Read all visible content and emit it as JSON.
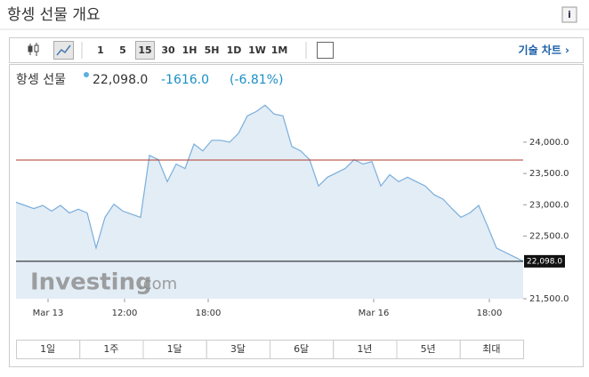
{
  "widget": {
    "title": "항셍 선물 개요",
    "info": "i",
    "intervals": [
      "1",
      "5",
      "15",
      "30",
      "1H",
      "5H",
      "1D",
      "1W",
      "1M"
    ],
    "selected_interval": "15",
    "technical": "기술 차트 ›",
    "quote": {
      "name": "항셍 선물",
      "price": "22,098.0",
      "change": "-1616.0",
      "percent": "(-6.81%)"
    },
    "ranges": [
      "1일",
      "1주",
      "1달",
      "3달",
      "6달",
      "1년",
      "5년",
      "최대"
    ],
    "watermark": {
      "brand": "Investing",
      "suffix": ".com"
    }
  },
  "chart_data": {
    "type": "area",
    "color": "#7aaedb",
    "fill": "#e3edf6",
    "x": [
      0,
      1,
      2,
      3,
      4,
      5,
      6,
      7,
      8,
      9,
      10,
      11,
      12,
      13,
      14,
      15,
      16,
      17,
      18,
      19,
      20,
      21,
      22,
      23,
      24,
      25,
      26,
      27,
      28,
      29,
      30,
      31,
      32,
      33,
      34,
      35,
      36,
      37,
      38,
      39,
      40,
      41,
      42,
      43,
      44,
      45,
      46,
      47,
      48,
      49,
      50,
      51,
      52,
      53,
      54,
      55,
      56,
      57
    ],
    "values": [
      23040,
      22990,
      22940,
      22990,
      22900,
      22990,
      22870,
      22930,
      22870,
      22310,
      22800,
      23010,
      22900,
      22850,
      22800,
      23790,
      23720,
      23370,
      23650,
      23580,
      23970,
      23860,
      24030,
      24030,
      24000,
      24140,
      24420,
      24490,
      24590,
      24450,
      24420,
      23930,
      23860,
      23720,
      23300,
      23440,
      23510,
      23580,
      23720,
      23650,
      23690,
      23300,
      23480,
      23370,
      23440,
      23370,
      23300,
      23160,
      23090,
      22940,
      22800,
      22870,
      22990,
      22660,
      22310,
      22240,
      22170,
      22098
    ],
    "last_label": "22,098.0",
    "reference_line": {
      "value": 23714,
      "color": "#b03a2e"
    },
    "xlim": [
      0,
      57
    ],
    "xticks": [
      {
        "value": 3.6,
        "label": "Mar 13"
      },
      {
        "value": 12.2,
        "label": "12:00"
      },
      {
        "value": 21.6,
        "label": "18:00"
      },
      {
        "value": 40.2,
        "label": "Mar 16"
      },
      {
        "value": 53.2,
        "label": "18:00"
      }
    ],
    "ylim": [
      21500,
      24850
    ],
    "yticks": [
      {
        "value": 21500,
        "label": "21,500.0"
      },
      {
        "value": 22500,
        "label": "22,500.0"
      },
      {
        "value": 23000,
        "label": "23,000.0"
      },
      {
        "value": 23500,
        "label": "23,500.0"
      },
      {
        "value": 24000,
        "label": "24,000.0"
      }
    ]
  }
}
